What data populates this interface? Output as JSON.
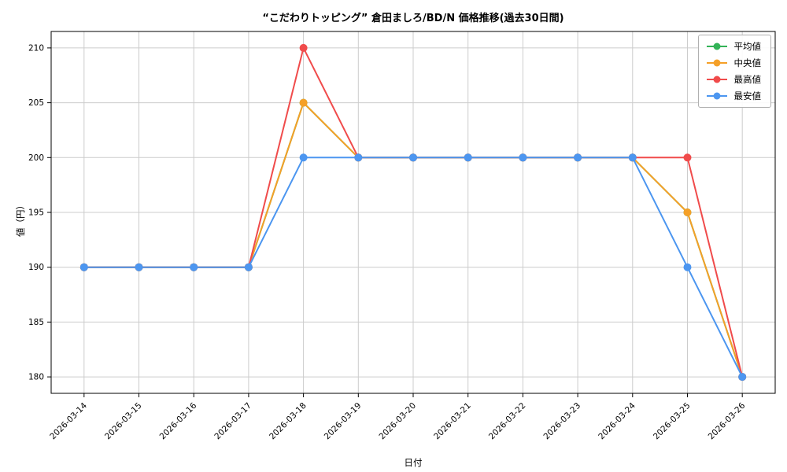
{
  "title": "“こだわりトッピング” 倉田ましろ/BD/N 価格推移(過去30日間)",
  "xlabel": "日付",
  "ylabel": "値（円）",
  "chart_data": {
    "type": "line",
    "x": [
      "2026-03-14",
      "2026-03-15",
      "2026-03-16",
      "2026-03-17",
      "2026-03-18",
      "2026-03-19",
      "2026-03-20",
      "2026-03-21",
      "2026-03-22",
      "2026-03-23",
      "2026-03-24",
      "2026-03-25",
      "2026-03-26"
    ],
    "series": [
      {
        "id": "avg",
        "name": "平均値",
        "color": "#33b357",
        "values": [
          190,
          190,
          190,
          190,
          205,
          200,
          200,
          200,
          200,
          200,
          200,
          195,
          180
        ]
      },
      {
        "id": "median",
        "name": "中央値",
        "color": "#f5a028",
        "values": [
          190,
          190,
          190,
          190,
          205,
          200,
          200,
          200,
          200,
          200,
          200,
          195,
          180
        ]
      },
      {
        "id": "max",
        "name": "最高値",
        "color": "#f04b4b",
        "values": [
          190,
          190,
          190,
          190,
          210,
          200,
          200,
          200,
          200,
          200,
          200,
          200,
          180
        ]
      },
      {
        "id": "min",
        "name": "最安値",
        "color": "#4c96f0",
        "values": [
          190,
          190,
          190,
          190,
          200,
          200,
          200,
          200,
          200,
          200,
          200,
          190,
          180
        ]
      }
    ],
    "ylim": [
      178.5,
      211.5
    ],
    "yticks": [
      180,
      185,
      190,
      195,
      200,
      205,
      210
    ],
    "grid": true,
    "legend_position": "upper right"
  }
}
